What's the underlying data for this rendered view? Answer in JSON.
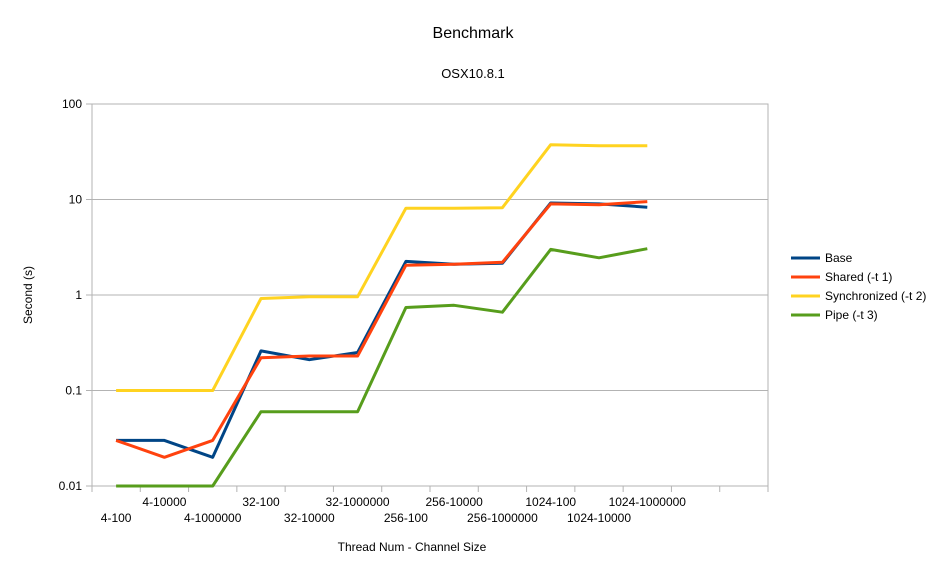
{
  "chart_data": {
    "type": "line",
    "title": "Benchmark",
    "subtitle": "OSX10.8.1",
    "xlabel": "Thread Num - Channel Size",
    "ylabel": "Second (s)",
    "y_scale": "log",
    "ylim": [
      0.01,
      100
    ],
    "y_ticks": [
      "0.01",
      "0.1",
      "1",
      "10",
      "100"
    ],
    "grid": "horizontal",
    "legend_position": "right",
    "categories": [
      "4-100",
      "4-10000",
      "4-1000000",
      "32-100",
      "32-10000",
      "32-1000000",
      "256-100",
      "256-10000",
      "256-1000000",
      "1024-100",
      "1024-10000",
      "1024-1000000",
      "",
      ""
    ],
    "series": [
      {
        "name": "Base",
        "color": "#004586",
        "values": [
          0.03,
          0.03,
          0.02,
          0.26,
          0.21,
          0.25,
          2.25,
          2.1,
          2.15,
          9.2,
          9.0,
          8.3,
          null,
          null
        ]
      },
      {
        "name": "Shared (-t 1)",
        "color": "#ff420e",
        "values": [
          0.03,
          0.02,
          0.03,
          0.22,
          0.23,
          0.23,
          2.05,
          2.1,
          2.2,
          9.0,
          8.8,
          9.5,
          null,
          null
        ]
      },
      {
        "name": "Synchronized (-t 2)",
        "color": "#ffd320",
        "values": [
          0.1,
          0.1,
          0.1,
          0.92,
          0.96,
          0.96,
          8.1,
          8.1,
          8.2,
          37.5,
          36.5,
          36.5,
          null,
          null
        ]
      },
      {
        "name": "Pipe (-t 3)",
        "color": "#579d1c",
        "values": [
          0.01,
          0.01,
          0.01,
          0.06,
          0.06,
          0.06,
          0.74,
          0.78,
          0.66,
          3.0,
          2.45,
          3.05,
          null,
          null
        ]
      }
    ]
  }
}
